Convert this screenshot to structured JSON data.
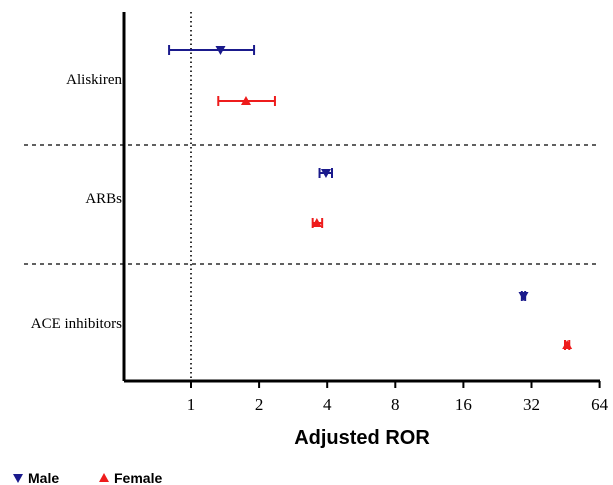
{
  "chart_data": {
    "type": "forest",
    "xscale": "log2",
    "xlim": [
      0.5,
      64
    ],
    "xticks": [
      1,
      2,
      4,
      8,
      16,
      32,
      64
    ],
    "xtick_labels": [
      "1",
      "2",
      "4",
      "8",
      "16",
      "32",
      "64"
    ],
    "xlabel": "Adjusted ROR",
    "reference_line_x": 1,
    "categories": [
      "Aliskiren",
      "ARBs",
      "ACE inhibitors"
    ],
    "series": [
      {
        "name": "Male",
        "marker": "triangle-down",
        "color": "#1a1a8c",
        "points": [
          {
            "category": "Aliskiren",
            "estimate": 1.35,
            "lower": 0.8,
            "upper": 1.9
          },
          {
            "category": "ARBs",
            "estimate": 3.95,
            "lower": 3.7,
            "upper": 4.2
          },
          {
            "category": "ACE inhibitors",
            "estimate": 29.5,
            "lower": 29.0,
            "upper": 30.0
          }
        ]
      },
      {
        "name": "Female",
        "marker": "triangle-up",
        "color": "#ee1c1c",
        "points": [
          {
            "category": "Aliskiren",
            "estimate": 1.75,
            "lower": 1.32,
            "upper": 2.35
          },
          {
            "category": "ARBs",
            "estimate": 3.6,
            "lower": 3.45,
            "upper": 3.8
          },
          {
            "category": "ACE inhibitors",
            "estimate": 46.0,
            "lower": 45.0,
            "upper": 47.0
          }
        ]
      }
    ],
    "grid": false,
    "legend": {
      "position": "bottom-left",
      "entries": [
        "Male",
        "Female"
      ]
    }
  }
}
